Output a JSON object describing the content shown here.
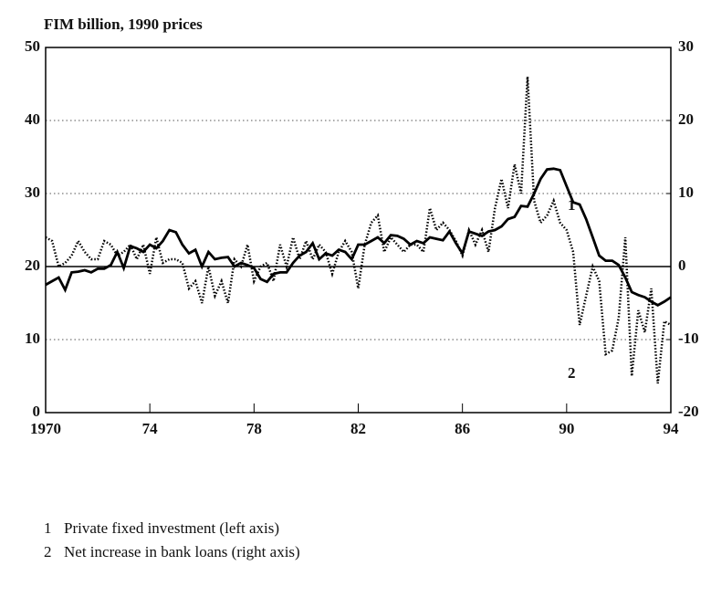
{
  "chart_data": {
    "type": "line",
    "ylabel": "FIM billion,  1990 prices",
    "x": [
      1970,
      1970.25,
      1970.5,
      1970.75,
      1971,
      1971.25,
      1971.5,
      1971.75,
      1972,
      1972.25,
      1972.5,
      1972.75,
      1973,
      1973.25,
      1973.5,
      1973.75,
      1974,
      1974.25,
      1974.5,
      1974.75,
      1975,
      1975.25,
      1975.5,
      1975.75,
      1976,
      1976.25,
      1976.5,
      1976.75,
      1977,
      1977.25,
      1977.5,
      1977.75,
      1978,
      1978.25,
      1978.5,
      1978.75,
      1979,
      1979.25,
      1979.5,
      1979.75,
      1980,
      1980.25,
      1980.5,
      1980.75,
      1981,
      1981.25,
      1981.5,
      1981.75,
      1982,
      1982.25,
      1982.5,
      1982.75,
      1983,
      1983.25,
      1983.5,
      1983.75,
      1984,
      1984.25,
      1984.5,
      1984.75,
      1985,
      1985.25,
      1985.5,
      1985.75,
      1986,
      1986.25,
      1986.5,
      1986.75,
      1987,
      1987.25,
      1987.5,
      1987.75,
      1988,
      1988.25,
      1988.5,
      1988.75,
      1989,
      1989.25,
      1989.5,
      1989.75,
      1990,
      1990.25,
      1990.5,
      1990.75,
      1991,
      1991.25,
      1991.5,
      1991.75,
      1992,
      1992.25,
      1992.5,
      1992.75,
      1993,
      1993.25,
      1993.5,
      1993.75,
      1994
    ],
    "series": [
      {
        "name": "Private fixed investment (left axis)",
        "label": "1",
        "color": "#000000",
        "style": "solid",
        "axis": "y",
        "values": [
          17.5,
          18,
          18.5,
          16.8,
          19.2,
          19.3,
          19.5,
          19.2,
          19.7,
          19.7,
          20.2,
          22,
          19.8,
          22.8,
          22.5,
          22,
          23,
          22.5,
          23.5,
          25,
          24.7,
          23,
          21.8,
          22.3,
          20,
          22,
          21,
          21.2,
          21.3,
          20,
          20.5,
          20.2,
          19.8,
          18.3,
          17.9,
          19,
          19.2,
          19.2,
          20.5,
          21.5,
          22,
          23.2,
          21,
          21.8,
          21.5,
          22.3,
          22,
          21,
          23,
          23,
          23.5,
          24,
          23.2,
          24.3,
          24.2,
          23.8,
          23,
          23.5,
          23.2,
          24,
          23.8,
          23.6,
          24.8,
          23.2,
          21.8,
          24.8,
          24.5,
          24.2,
          24.8,
          25,
          25.5,
          26.5,
          26.8,
          28.3,
          28.2,
          30,
          32,
          33.3,
          33.4,
          33.2,
          31,
          28.8,
          28.5,
          26.5,
          24,
          21.5,
          20.8,
          20.8,
          20.2,
          18.5,
          16.5,
          16.1,
          15.8,
          15.2,
          14.7,
          15.2,
          15.8
        ]
      },
      {
        "name": "Net increase in bank loans (right axis)",
        "label": "2",
        "color": "#000000",
        "style": "dotted",
        "axis": "y2",
        "values": [
          4,
          3.5,
          0,
          0.5,
          1.5,
          3.5,
          2,
          1,
          1,
          3.5,
          3,
          1.5,
          2,
          3,
          1,
          3,
          -1,
          4,
          0.5,
          1,
          1,
          0.5,
          -3,
          -2,
          -5,
          0,
          -4,
          -2,
          -5,
          1,
          0,
          3,
          -2,
          0,
          0.5,
          -2,
          3,
          0,
          4,
          1,
          3.5,
          1,
          3,
          2,
          -1,
          2,
          3.5,
          2,
          -3,
          3,
          6,
          7,
          2,
          4,
          3,
          2,
          3,
          3,
          2,
          8,
          5,
          6,
          5,
          3.5,
          1.5,
          5,
          3,
          5,
          2,
          8,
          12,
          8,
          14,
          10,
          26,
          9,
          6,
          7,
          9,
          6,
          5,
          2,
          -8,
          -4,
          0,
          -2,
          -12,
          -11.5,
          -7,
          4,
          -15,
          -6,
          -9,
          -3,
          -16,
          -7.5,
          -8
        ]
      }
    ],
    "xlim": [
      1970,
      1994
    ],
    "xticks": [
      1970,
      {
        "value": 1974,
        "label": "74"
      },
      {
        "value": 1978,
        "label": "78"
      },
      {
        "value": 1982,
        "label": "82"
      },
      {
        "value": 1986,
        "label": "86"
      },
      {
        "value": 1990,
        "label": "90"
      },
      {
        "value": 1994,
        "label": "94"
      }
    ],
    "ylim": [
      0,
      50
    ],
    "yticks": [
      0,
      10,
      20,
      30,
      40,
      50
    ],
    "y2lim": [
      -20,
      30
    ],
    "y2ticks": [
      -20,
      -10,
      0,
      10,
      20,
      30
    ],
    "grid": true
  }
}
